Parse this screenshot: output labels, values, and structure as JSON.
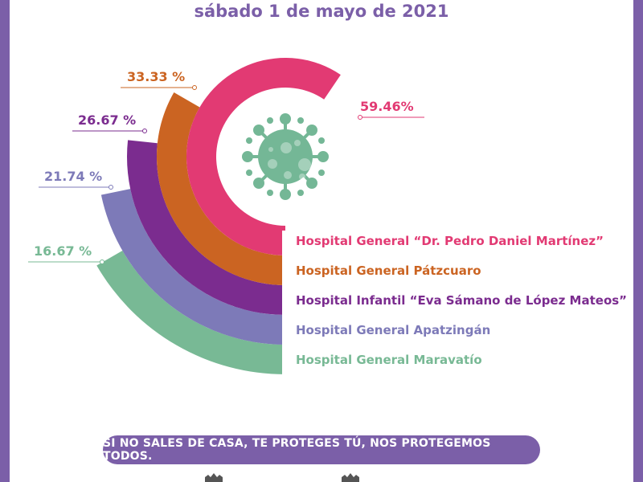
{
  "header": {
    "date": "sábado 1 de mayo de 2021"
  },
  "colors": {
    "frame": "#7b5fa8",
    "virus": "#74b796",
    "series": [
      "#e23a73",
      "#cb6422",
      "#7b2c8f",
      "#7d7ab8",
      "#78b995"
    ]
  },
  "icons": {
    "center": "virus-icon"
  },
  "chart_data": {
    "type": "radial-bar",
    "unit": "%",
    "categories": [
      "Hospital General “Dr. Pedro Daniel Martínez”",
      "Hospital General Pátzcuaro",
      "Hospital Infantil “Eva Sámano de López Mateos”",
      "Hospital General Apatzingán",
      "Hospital General Maravatío"
    ],
    "values": [
      59.46,
      33.33,
      26.67,
      21.74,
      16.67
    ],
    "value_labels": [
      "59.46%",
      "33.33 %",
      "26.67 %",
      "21.74 %",
      "16.67 %"
    ]
  },
  "footer": {
    "slogan": "SI NO SALES DE CASA, TE PROTEGES TÚ, NOS PROTEGEMOS TODOS."
  }
}
